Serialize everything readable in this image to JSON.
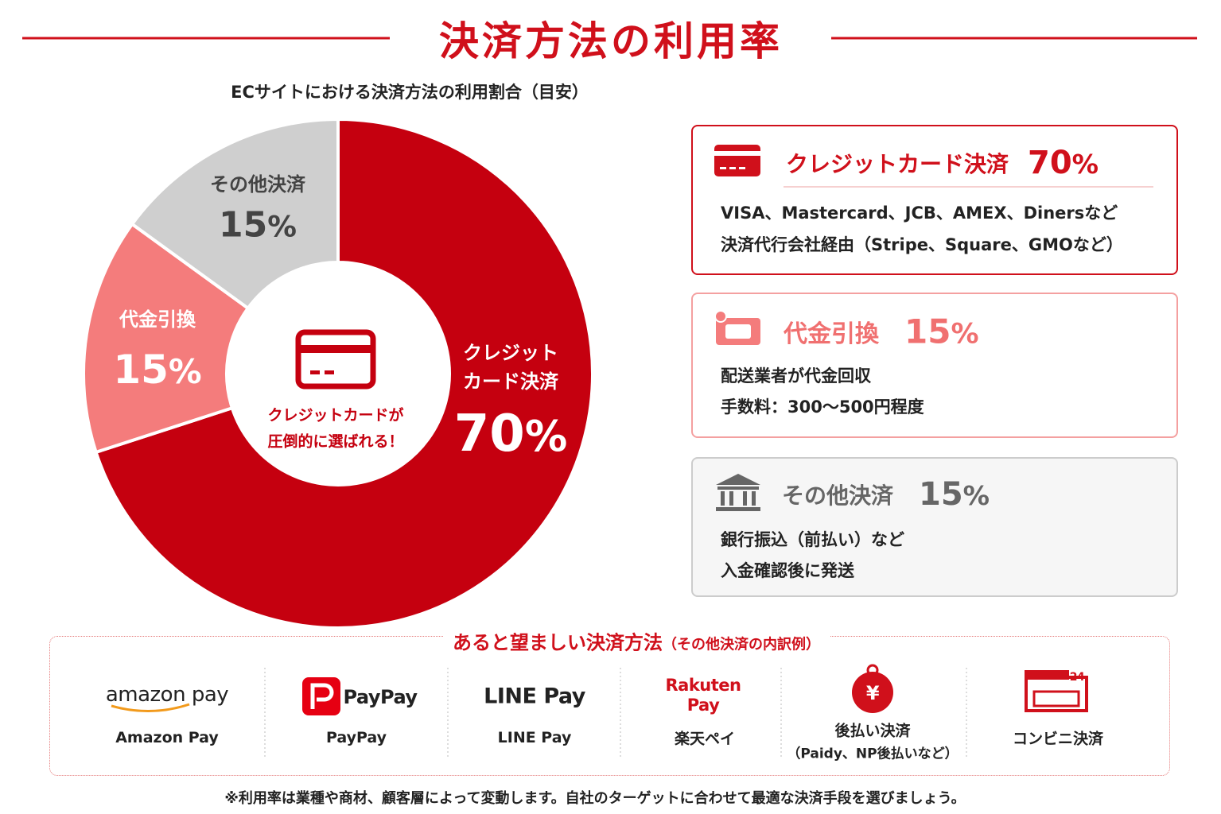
{
  "title": "決済方法の利用率",
  "chart_data": {
    "type": "donut",
    "title": "ECサイトにおける決済方法の利用割合（目安）",
    "categories": [
      "クレジットカード決済",
      "代金引換",
      "その他決済"
    ],
    "values": [
      70,
      15,
      15
    ],
    "value_labels": [
      "70%",
      "15%",
      "15%"
    ],
    "colors": [
      "#c5000f",
      "#f47c7c",
      "#cfcfcf"
    ],
    "annotation": [
      "クレジットカードが",
      "圧倒的に選ばれる！"
    ]
  },
  "cards": [
    {
      "details": [
        "VISA、Mastercard、JCB、AMEX、Dinersなど",
        "決済代行会社経由（Stripe、Square、GMOなど）"
      ]
    },
    {
      "details": [
        "配送業者が代金回収",
        "手数料：300〜500円程度"
      ]
    },
    {
      "details": [
        "銀行振込（前払い）など",
        "入金確認後に発送"
      ]
    }
  ],
  "alternatives": {
    "title": "あると望ましい決済方法",
    "subtitle": "（その他決済の内訳例）",
    "items": [
      {
        "logo": [
          "amazon pay"
        ],
        "label": [
          "Amazon Pay"
        ]
      },
      {
        "logo": [
          "PayPay"
        ],
        "label": [
          "PayPay"
        ]
      },
      {
        "logo": [
          "LINE Pay"
        ],
        "label": [
          "LINE Pay"
        ]
      },
      {
        "logo": [
          "Rakuten",
          "Pay"
        ],
        "label": [
          "楽天ペイ"
        ]
      },
      {
        "logo": [
          "¥"
        ],
        "label": [
          "後払い決済",
          "（Paidy、NP後払いなど）"
        ]
      },
      {
        "logo": [
          "24"
        ],
        "label": [
          "コンビニ決済"
        ]
      }
    ]
  },
  "footnote": "※利用率は業種や商材、顧客層によって変動します。自社のターゲットに合わせて最適な決済手段を選びましょう。"
}
